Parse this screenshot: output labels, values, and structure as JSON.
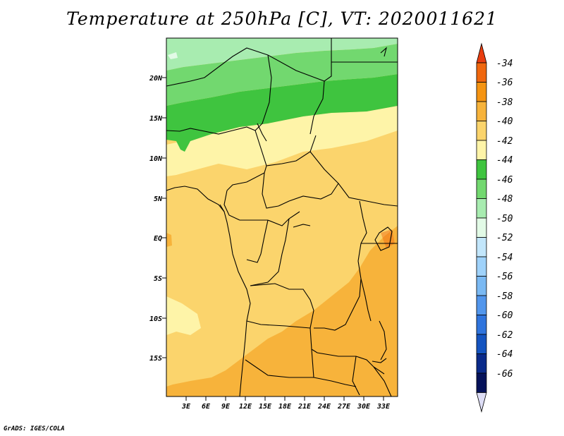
{
  "title": "Temperature at 250hPa [C], VT: 2020011621",
  "credit": "GrADS: IGES/COLA",
  "map": {
    "lat_labels": [
      "20N",
      "15N",
      "10N",
      "5N",
      "EQ",
      "5S",
      "10S",
      "15S"
    ],
    "lon_labels": [
      "3E",
      "6E",
      "9E",
      "12E",
      "15E",
      "18E",
      "21E",
      "24E",
      "27E",
      "30E",
      "33E"
    ],
    "shaded_regions": [
      "-48 north Sahara",
      "-46 band ~16-18N",
      "-44 band ~13-16N",
      "-42 Sahel / Atlantic",
      "-40 Congo basin",
      "-38 southern Africa / East Africa",
      "-36 small patches"
    ]
  },
  "colorbar": {
    "labels": [
      "-34",
      "-36",
      "-38",
      "-40",
      "-42",
      "-44",
      "-46",
      "-48",
      "-50",
      "-52",
      "-54",
      "-56",
      "-58",
      "-60",
      "-62",
      "-64",
      "-66"
    ],
    "colors": [
      "#e83d10",
      "#f0670e",
      "#f59412",
      "#f7b33b",
      "#fbd46c",
      "#fef4a8",
      "#3fc43f",
      "#72d86f",
      "#a8ecb0",
      "#e2fae6",
      "#c2e6fb",
      "#9fd2fa",
      "#7ab9f3",
      "#5296ec",
      "#2f74dd",
      "#1454c0",
      "#0a2a8a",
      "#05125a",
      "#ddddf5"
    ]
  }
}
